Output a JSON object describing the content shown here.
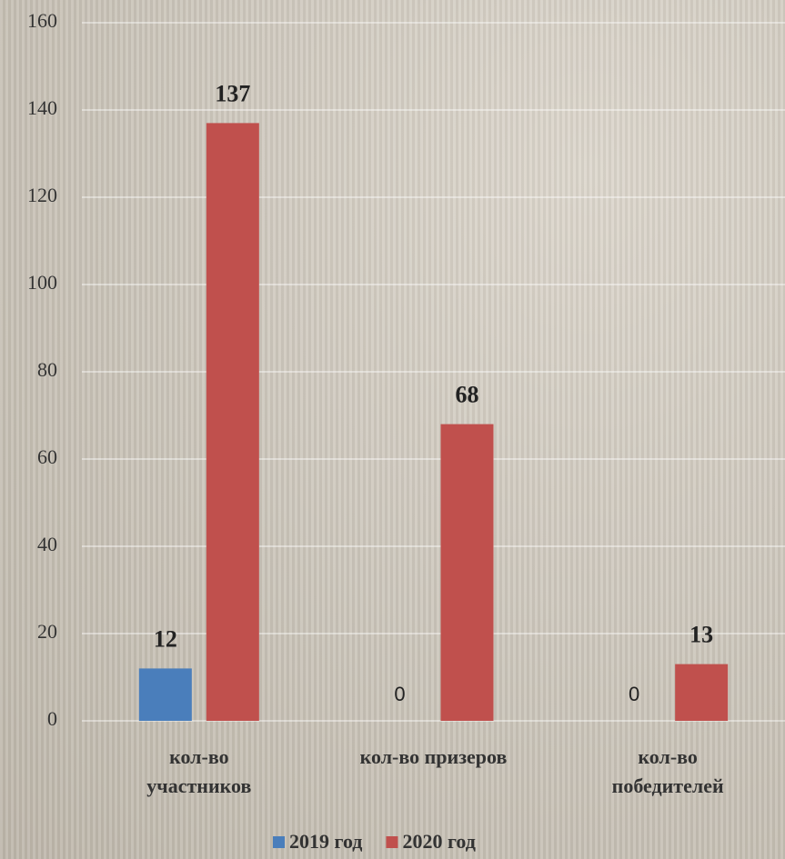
{
  "chart_data": {
    "type": "bar",
    "categories": [
      "кол-во участников",
      "кол-во призеров",
      "кол-во победителей"
    ],
    "series": [
      {
        "name": "2019 год",
        "color": "#4a7ebb",
        "values": [
          12,
          0,
          0
        ]
      },
      {
        "name": "2020 год",
        "color": "#c0504d",
        "values": [
          137,
          68,
          13
        ]
      }
    ],
    "ylim": [
      0,
      160
    ],
    "yticks": [
      0,
      20,
      40,
      60,
      80,
      100,
      120,
      140,
      160
    ],
    "grid": true,
    "legend": "bottom"
  }
}
